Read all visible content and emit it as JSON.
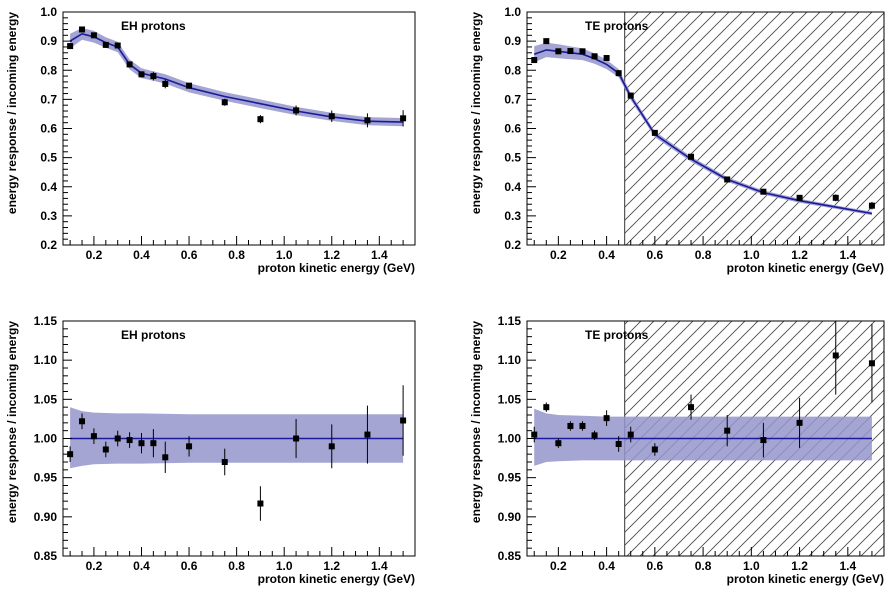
{
  "chart_data": [
    {
      "type": "scatter",
      "title": "EH protons",
      "xlabel": "proton kinetic energy (GeV)",
      "ylabel": "energy response / incoming energy",
      "xlim": [
        0.07,
        1.55
      ],
      "ylim": [
        0.2,
        1.0
      ],
      "yticks": [
        "0.2",
        "0.3",
        "0.4",
        "0.5",
        "0.6",
        "0.7",
        "0.8",
        "0.9",
        "1.0"
      ],
      "xticks": [
        "0.2",
        "0.4",
        "0.6",
        "0.8",
        "1.0",
        "1.2",
        "1.4"
      ],
      "hatched_region": null,
      "band": {
        "x": [
          0.1,
          0.15,
          0.2,
          0.25,
          0.3,
          0.35,
          0.4,
          0.45,
          0.5,
          0.6,
          0.75,
          0.9,
          1.05,
          1.2,
          1.35,
          1.5
        ],
        "center": [
          0.9,
          0.925,
          0.915,
          0.895,
          0.88,
          0.82,
          0.79,
          0.78,
          0.77,
          0.74,
          0.71,
          0.685,
          0.66,
          0.64,
          0.625,
          0.622
        ],
        "half": [
          0.025,
          0.02,
          0.02,
          0.018,
          0.018,
          0.017,
          0.017,
          0.016,
          0.016,
          0.016,
          0.015,
          0.015,
          0.014,
          0.014,
          0.014,
          0.014
        ]
      },
      "points": {
        "x": [
          0.1,
          0.15,
          0.2,
          0.25,
          0.3,
          0.35,
          0.4,
          0.45,
          0.5,
          0.6,
          0.75,
          0.9,
          1.05,
          1.2,
          1.35,
          1.5
        ],
        "y": [
          0.883,
          0.94,
          0.92,
          0.887,
          0.885,
          0.82,
          0.786,
          0.78,
          0.753,
          0.747,
          0.69,
          0.632,
          0.662,
          0.642,
          0.628,
          0.635
        ],
        "err": [
          0.01,
          0.008,
          0.008,
          0.008,
          0.008,
          0.008,
          0.01,
          0.015,
          0.015,
          0.01,
          0.012,
          0.014,
          0.017,
          0.02,
          0.024,
          0.028
        ]
      }
    },
    {
      "type": "scatter",
      "title": "TE protons",
      "xlabel": "proton kinetic energy (GeV)",
      "ylabel": "energy response / incoming energy",
      "xlim": [
        0.07,
        1.55
      ],
      "ylim": [
        0.2,
        1.0
      ],
      "yticks": [
        "0.2",
        "0.3",
        "0.4",
        "0.5",
        "0.6",
        "0.7",
        "0.8",
        "0.9",
        "1.0"
      ],
      "xticks": [
        "0.2",
        "0.4",
        "0.6",
        "0.8",
        "1.0",
        "1.2",
        "1.4"
      ],
      "hatched_region": [
        0.475,
        1.55
      ],
      "band": {
        "x": [
          0.1,
          0.15,
          0.2,
          0.25,
          0.3,
          0.35,
          0.4,
          0.45,
          0.5,
          0.6,
          0.75,
          0.9,
          1.05,
          1.2,
          1.35,
          1.5
        ],
        "center": [
          0.855,
          0.87,
          0.865,
          0.86,
          0.855,
          0.84,
          0.82,
          0.79,
          0.71,
          0.58,
          0.495,
          0.425,
          0.38,
          0.352,
          0.33,
          0.308
        ],
        "half": [
          0.028,
          0.025,
          0.024,
          0.022,
          0.02,
          0.018,
          0.016,
          0.014,
          0.012,
          0.01,
          0.009,
          0.008,
          0.007,
          0.007,
          0.006,
          0.006
        ]
      },
      "points": {
        "x": [
          0.1,
          0.15,
          0.2,
          0.25,
          0.3,
          0.35,
          0.4,
          0.45,
          0.5,
          0.6,
          0.75,
          0.9,
          1.05,
          1.2,
          1.35,
          1.5
        ],
        "y": [
          0.835,
          0.9,
          0.865,
          0.866,
          0.865,
          0.848,
          0.842,
          0.79,
          0.713,
          0.585,
          0.503,
          0.425,
          0.383,
          0.362,
          0.362,
          0.335
        ],
        "err": [
          0.008,
          0.008,
          0.007,
          0.007,
          0.007,
          0.007,
          0.008,
          0.01,
          0.008,
          0.006,
          0.006,
          0.005,
          0.005,
          0.008,
          0.012,
          0.013
        ]
      }
    },
    {
      "type": "scatter",
      "title": "EH protons",
      "xlabel": "proton kinetic energy (GeV)",
      "ylabel": "energy response / incoming energy",
      "xlim": [
        0.07,
        1.55
      ],
      "ylim": [
        0.85,
        1.15
      ],
      "yticks": [
        "0.85",
        "0.90",
        "0.95",
        "1.00",
        "1.05",
        "1.10",
        "1.15"
      ],
      "xticks": [
        "0.2",
        "0.4",
        "0.6",
        "0.8",
        "1.0",
        "1.2",
        "1.4"
      ],
      "hatched_region": null,
      "band": {
        "x": [
          0.1,
          0.15,
          0.2,
          0.3,
          0.4,
          0.6,
          0.8,
          1.0,
          1.2,
          1.5
        ],
        "upper": [
          1.04,
          1.035,
          1.033,
          1.032,
          1.032,
          1.031,
          1.031,
          1.031,
          1.031,
          1.031
        ],
        "lower": [
          0.962,
          0.965,
          0.967,
          0.968,
          0.968,
          0.969,
          0.969,
          0.969,
          0.969,
          0.969
        ]
      },
      "line": 1.0,
      "points": {
        "x": [
          0.1,
          0.15,
          0.2,
          0.25,
          0.3,
          0.35,
          0.4,
          0.45,
          0.5,
          0.6,
          0.75,
          0.9,
          1.05,
          1.2,
          1.35,
          1.5
        ],
        "y": [
          0.98,
          1.022,
          1.003,
          0.986,
          1.0,
          0.998,
          0.994,
          0.994,
          0.976,
          0.99,
          0.97,
          0.917,
          1.0,
          0.99,
          1.005,
          1.023
        ],
        "err": [
          0.01,
          0.01,
          0.01,
          0.01,
          0.01,
          0.01,
          0.013,
          0.018,
          0.02,
          0.013,
          0.017,
          0.022,
          0.025,
          0.028,
          0.037,
          0.045
        ]
      }
    },
    {
      "type": "scatter",
      "title": "TE protons",
      "xlabel": "proton kinetic energy (GeV)",
      "ylabel": "energy response / incoming energy",
      "xlim": [
        0.07,
        1.55
      ],
      "ylim": [
        0.85,
        1.15
      ],
      "yticks": [
        "0.85",
        "0.90",
        "0.95",
        "1.00",
        "1.05",
        "1.10",
        "1.15"
      ],
      "xticks": [
        "0.2",
        "0.4",
        "0.6",
        "0.8",
        "1.0",
        "1.2",
        "1.4"
      ],
      "hatched_region": [
        0.475,
        1.55
      ],
      "band": {
        "x": [
          0.1,
          0.15,
          0.2,
          0.3,
          0.4,
          0.6,
          0.8,
          1.0,
          1.2,
          1.5
        ],
        "upper": [
          1.038,
          1.032,
          1.03,
          1.029,
          1.028,
          1.028,
          1.028,
          1.028,
          1.028,
          1.028
        ],
        "lower": [
          0.965,
          0.97,
          0.971,
          0.972,
          0.972,
          0.972,
          0.972,
          0.972,
          0.972,
          0.972
        ]
      },
      "line": 1.0,
      "points": {
        "x": [
          0.1,
          0.15,
          0.2,
          0.25,
          0.3,
          0.35,
          0.4,
          0.45,
          0.5,
          0.6,
          0.75,
          0.9,
          1.05,
          1.2,
          1.35,
          1.5
        ],
        "y": [
          1.005,
          1.04,
          0.994,
          1.016,
          1.016,
          1.004,
          1.026,
          0.993,
          1.005,
          0.986,
          1.04,
          1.01,
          0.998,
          1.02,
          1.106,
          1.096
        ],
        "err": [
          0.01,
          0.006,
          0.006,
          0.006,
          0.006,
          0.006,
          0.01,
          0.01,
          0.01,
          0.008,
          0.016,
          0.02,
          0.022,
          0.032,
          0.05,
          0.05
        ]
      }
    }
  ]
}
